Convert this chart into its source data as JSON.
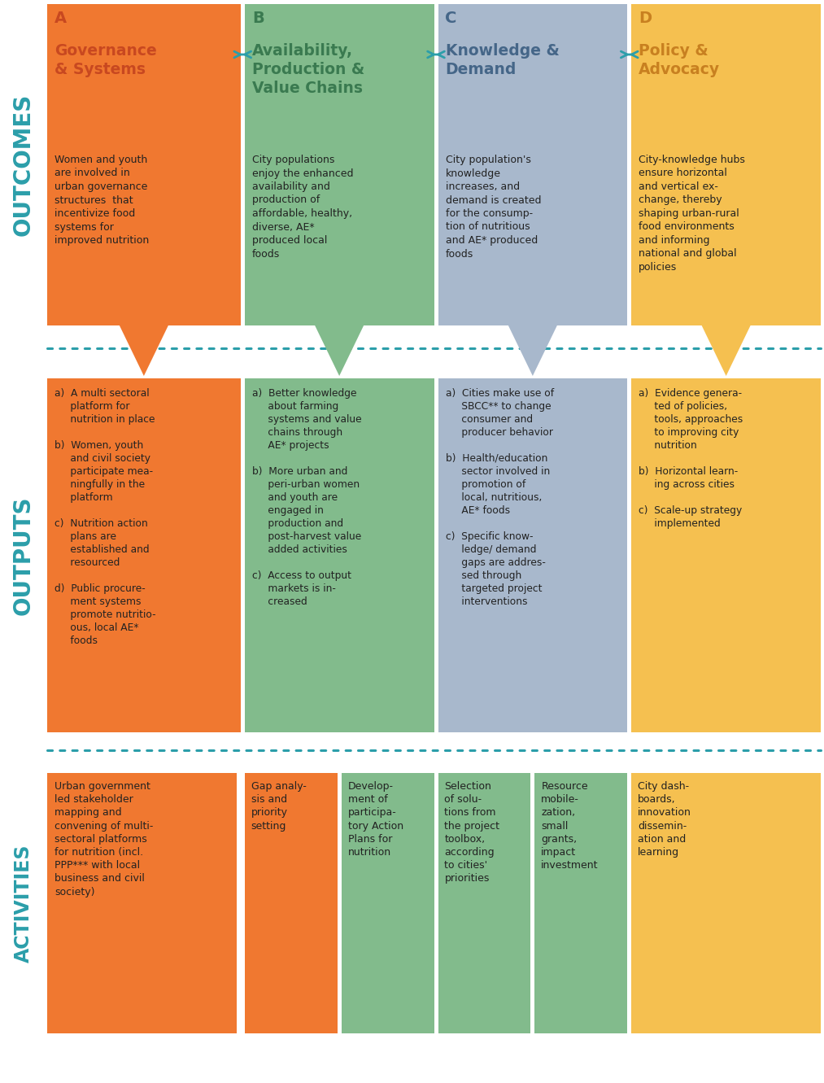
{
  "colors": {
    "orange": "#F07830",
    "green": "#82BB8C",
    "blue_light": "#A8B8CC",
    "yellow": "#F5C050",
    "teal": "#2B9EAA",
    "dark_green": "#3A7A50",
    "dark_orange": "#C84820",
    "dark_blue": "#456688",
    "dark_yellow": "#C88020",
    "white": "#FFFFFF",
    "black": "#222222",
    "bg": "#FFFFFF",
    "orange_dark2": "#E06010",
    "green_act": "#88BB88"
  },
  "col_titles": [
    "Governance\n& Systems",
    "Availability,\nProduction &\nValue Chains",
    "Knowledge &\nDemand",
    "Policy &\nAdvocacy"
  ],
  "outcomes_text": [
    "Women and youth\nare involved in\nurban governance\nstructures  that\nincentivize food\nsystems for\nimproved nutrition",
    "City populations\nenjoy the enhanced\navailability and\nproduction of\naffordable, healthy,\ndiverse, AE*\nproduced local\nfoods",
    "City population's\nknowledge\nincreases, and\ndemand is created\nfor the consump-\ntion of nutritious\nand AE* produced\nfoods",
    "City-knowledge hubs\nensure horizontal\nand vertical ex-\nchange, thereby\nshaping urban-rural\nfood environments\nand informing\nnational and global\npolicies"
  ],
  "outputs_text_a": "a)  A multi sectoral\n     platform for\n     nutrition in place\n\nb)  Women, youth\n     and civil society\n     participate mea-\n     ningfully in the\n     platform\n\nc)  Nutrition action\n     plans are\n     established and\n     resourced\n\nd)  Public procure-\n     ment systems\n     promote nutritio-\n     ous, local AE*\n     foods",
  "outputs_text_b": "a)  Better knowledge\n     about farming\n     systems and value\n     chains through\n     AE* projects\n\nb)  More urban and\n     peri-urban women\n     and youth are\n     engaged in\n     production and\n     post-harvest value\n     added activities\n\nc)  Access to output\n     markets is in-\n     creased",
  "outputs_text_c": "a)  Cities make use of\n     SBCC** to change\n     consumer and\n     producer behavior\n\nb)  Health/education\n     sector involved in\n     promotion of\n     local, nutritious,\n     AE* foods\n\nc)  Specific know-\n     ledge/ demand\n     gaps are addres-\n     sed through\n     targeted project\n     interventions",
  "outputs_text_d": "a)  Evidence genera-\n     ted of policies,\n     tools, approaches\n     to improving city\n     nutrition\n\nb)  Horizontal learn-\n     ing across cities\n\nc)  Scale-up strategy\n     implemented",
  "act1": "Urban government\nled stakeholder\nmapping and\nconvening of multi-\nsectoral platforms\nfor nutrition (incl.\nPPP*** with local\nbusiness and civil\nsociety)",
  "act2": "Gap analy-\nsis and\npriority\nsetting",
  "act3": "Develop-\nment of\nparticipa-\ntory Action\nPlans for\nnutrition",
  "act4": "Selection\nof solu-\ntions from\nthe project\ntoolbox,\naccording\nto cities'\npriorities",
  "act5": "Resource\nmobile-\nzation,\nsmall\ngrants,\nimpact\ninvestment",
  "act6": "City dash-\nboards,\ninnovation\ndissemin-\nation and\nlearning"
}
